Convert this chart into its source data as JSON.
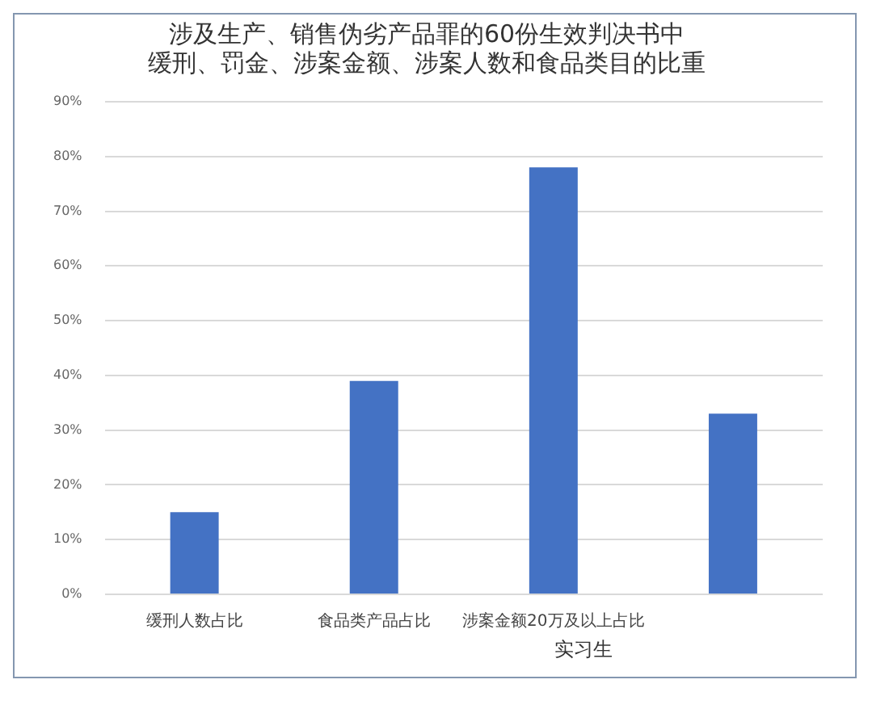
{
  "chart_data": {
    "type": "bar",
    "title": [
      "涉及生产、销售伪劣产品罪的60份生效判决书中",
      "缓刑、罚金、涉案金额、涉案人数和食品类目的比重"
    ],
    "categories": [
      "缓刑人数占比",
      "食品类产品占比",
      "涉案金额20万及以上占比",
      null
    ],
    "values": [
      15,
      39,
      78,
      33
    ],
    "color": "#4472c4",
    "ylim": [
      0,
      90
    ],
    "yticks": [
      {
        "value": 0,
        "label": "0%"
      },
      {
        "value": 10,
        "label": "10%"
      },
      {
        "value": 20,
        "label": "20%"
      },
      {
        "value": 30,
        "label": "30%"
      },
      {
        "value": 40,
        "label": "40%"
      },
      {
        "value": 50,
        "label": "50%"
      },
      {
        "value": 60,
        "label": "60%"
      },
      {
        "value": 70,
        "label": "70%"
      },
      {
        "value": 80,
        "label": "80%"
      },
      {
        "value": 90,
        "label": "90%"
      }
    ],
    "grid": "y",
    "legend": false,
    "annotations": [
      "实习生"
    ]
  }
}
